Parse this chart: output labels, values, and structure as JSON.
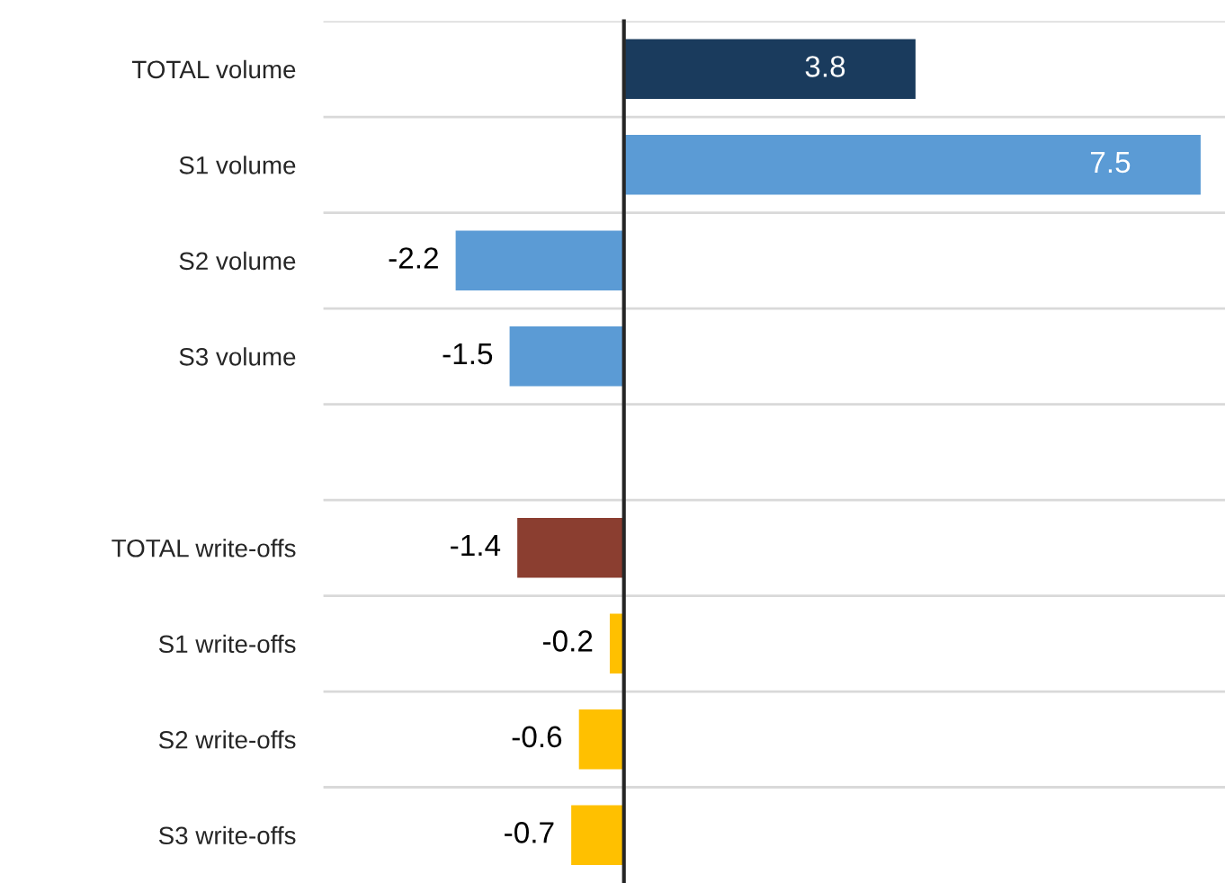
{
  "chart_data": {
    "type": "bar",
    "orientation": "horizontal",
    "categories": [
      "TOTAL volume",
      "S1 volume",
      "S2 volume",
      "S3 volume",
      null,
      "TOTAL write-offs",
      "S1 write-offs",
      "S2 write-offs",
      "S3 write-offs"
    ],
    "values": [
      3.8,
      7.5,
      -2.2,
      -1.5,
      null,
      -1.4,
      -0.2,
      -0.6,
      -0.7
    ],
    "colors": [
      "#1a3b5d",
      "#5b9bd5",
      "#5b9bd5",
      "#5b9bd5",
      "#5b9bd5",
      "#8b3e30",
      "#ffc000",
      "#ffc000",
      "#ffc000"
    ],
    "xlim": [
      -3.9,
      7.8
    ],
    "data_labels": true,
    "grid": "y"
  }
}
